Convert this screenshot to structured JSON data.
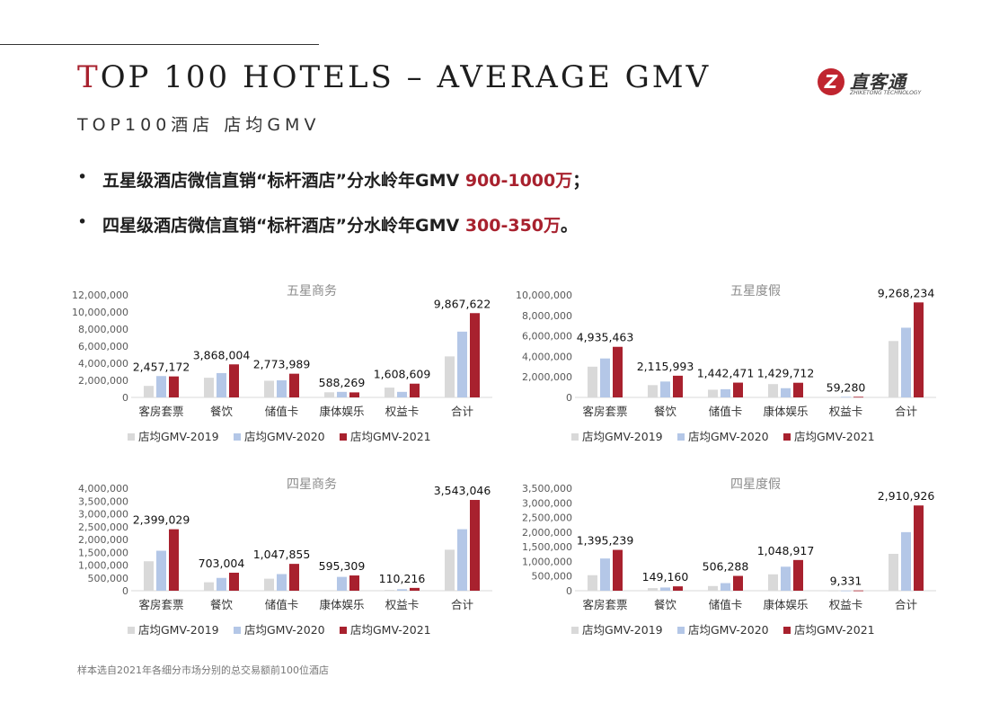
{
  "header": {
    "title_first_letter": "T",
    "title_rest": "OP 100 HOTELS – AVERAGE GMV",
    "subtitle": "TOP100酒店 店均GMV"
  },
  "logo": {
    "mark": "Z",
    "name": "直客通",
    "tagline": "ZHIKETONG TECHNOLOGY",
    "icon": "zhiketong-logo-icon"
  },
  "bullets": [
    {
      "marker": "•",
      "text": "五星级酒店微信直销“标杆酒店”分水岭年GMV ",
      "highlight": "900-1000万",
      "tail": "；"
    },
    {
      "marker": "•",
      "text": "四星级酒店微信直销“标杆酒店”分水岭年GMV ",
      "highlight": "300-350万",
      "tail": "。"
    }
  ],
  "footnote": "样本选自2021年各细分市场分别的总交易额前100位酒店",
  "colors": {
    "c2019": "#d9d9d9",
    "c2020": "#b4c7e7",
    "c2021": "#a8212e",
    "accent": "#a8212e"
  },
  "chart_data": [
    {
      "type": "bar",
      "title": "五星商务",
      "categories": [
        "客房套票",
        "餐饮",
        "储值卡",
        "康体娱乐",
        "权益卡",
        "合计"
      ],
      "series": [
        {
          "name": "店均GMV-2019",
          "values": [
            1350000,
            2300000,
            1950000,
            600000,
            1150000,
            4800000
          ]
        },
        {
          "name": "店均GMV-2020",
          "values": [
            2500000,
            2850000,
            2000000,
            650000,
            650000,
            7700000
          ]
        },
        {
          "name": "店均GMV-2021",
          "values": [
            2457172,
            3868004,
            2773989,
            588269,
            1608609,
            9867622
          ]
        }
      ],
      "data_labels": [
        "2,457,172",
        "3,868,004",
        "2,773,989",
        "588,269",
        "1,608,609",
        "9,867,622"
      ],
      "ylim": [
        0,
        12000000
      ],
      "yticks": [
        "12,000,000",
        "10,000,000",
        "8,000,000",
        "6,000,000",
        "4,000,000",
        "2,000,000",
        "0"
      ],
      "legend": "bottom"
    },
    {
      "type": "bar",
      "title": "五星度假",
      "categories": [
        "客房套票",
        "餐饮",
        "储值卡",
        "康体娱乐",
        "权益卡",
        "合计"
      ],
      "series": [
        {
          "name": "店均GMV-2019",
          "values": [
            3000000,
            1200000,
            750000,
            1300000,
            50000,
            5500000
          ]
        },
        {
          "name": "店均GMV-2020",
          "values": [
            3800000,
            1550000,
            800000,
            900000,
            60000,
            6800000
          ]
        },
        {
          "name": "店均GMV-2021",
          "values": [
            4935463,
            2115993,
            1442471,
            1429712,
            59280,
            9268234
          ]
        }
      ],
      "data_labels": [
        "4,935,463",
        "2,115,993",
        "1,442,471",
        "1,429,712",
        "59,280",
        "9,268,234"
      ],
      "ylim": [
        0,
        10000000
      ],
      "yticks": [
        "10,000,000",
        "8,000,000",
        "6,000,000",
        "4,000,000",
        "2,000,000",
        "0"
      ],
      "legend": "bottom"
    },
    {
      "type": "bar",
      "title": "四星商务",
      "categories": [
        "客房套票",
        "餐饮",
        "储值卡",
        "康体娱乐",
        "权益卡",
        "合计"
      ],
      "series": [
        {
          "name": "店均GMV-2019",
          "values": [
            1150000,
            330000,
            470000,
            20000,
            30000,
            1600000
          ]
        },
        {
          "name": "店均GMV-2020",
          "values": [
            1560000,
            500000,
            650000,
            540000,
            60000,
            2400000
          ]
        },
        {
          "name": "店均GMV-2021",
          "values": [
            2399029,
            703004,
            1047855,
            595309,
            110216,
            3543046
          ]
        }
      ],
      "data_labels": [
        "2,399,029",
        "703,004",
        "1,047,855",
        "595,309",
        "110,216",
        "3,543,046"
      ],
      "ylim": [
        0,
        4000000
      ],
      "yticks": [
        "4,000,000",
        "3,500,000",
        "3,000,000",
        "2,500,000",
        "2,000,000",
        "1,500,000",
        "1,000,000",
        "500,000",
        "0"
      ],
      "legend": "bottom"
    },
    {
      "type": "bar",
      "title": "四星度假",
      "categories": [
        "客房套票",
        "餐饮",
        "储值卡",
        "康体娱乐",
        "权益卡",
        "合计"
      ],
      "series": [
        {
          "name": "店均GMV-2019",
          "values": [
            530000,
            90000,
            160000,
            560000,
            4000,
            1260000
          ]
        },
        {
          "name": "店均GMV-2020",
          "values": [
            1100000,
            110000,
            260000,
            820000,
            6000,
            2000000
          ]
        },
        {
          "name": "店均GMV-2021",
          "values": [
            1395239,
            149160,
            506288,
            1048917,
            9331,
            2910926
          ]
        }
      ],
      "data_labels": [
        "1,395,239",
        "149,160",
        "506,288",
        "1,048,917",
        "9,331",
        "2,910,926"
      ],
      "ylim": [
        0,
        3500000
      ],
      "yticks": [
        "3,500,000",
        "3,000,000",
        "2,500,000",
        "2,000,000",
        "1,500,000",
        "1,000,000",
        "500,000",
        "0"
      ],
      "legend": "bottom"
    }
  ]
}
